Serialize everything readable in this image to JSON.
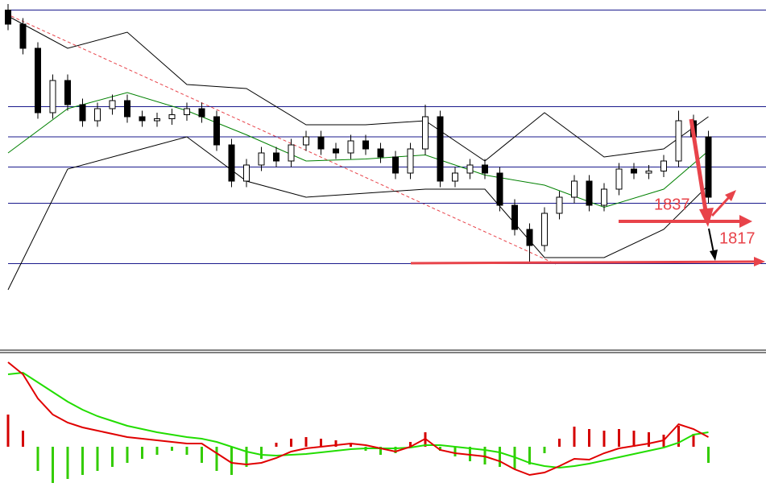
{
  "chart_data": [
    {
      "type": "candlestick",
      "annotations": [
        "1837",
        "1817"
      ],
      "ylim": [
        1690,
        2040
      ],
      "levels": [
        2030,
        1934,
        1904,
        1874,
        1838,
        1778
      ],
      "level_color": "#1a1a8c",
      "open": [
        2030,
        2016,
        1992,
        1928,
        1960,
        1936,
        1920,
        1932,
        1940,
        1924,
        1920,
        1922,
        1926,
        1932,
        1924,
        1896,
        1860,
        1876,
        1888,
        1880,
        1896,
        1904,
        1892,
        1888,
        1900,
        1892,
        1884,
        1868,
        1892,
        1924,
        1860,
        1868,
        1876,
        1868,
        1836,
        1812,
        1796,
        1828,
        1844,
        1860,
        1836,
        1852,
        1872,
        1868,
        1870,
        1880,
        1920,
        1904
      ],
      "high": [
        2036,
        2022,
        1998,
        1966,
        1966,
        1942,
        1938,
        1946,
        1946,
        1930,
        1928,
        1932,
        1938,
        1938,
        1930,
        1902,
        1882,
        1894,
        1894,
        1902,
        1910,
        1910,
        1898,
        1906,
        1906,
        1898,
        1890,
        1898,
        1936,
        1930,
        1874,
        1882,
        1882,
        1874,
        1842,
        1818,
        1834,
        1850,
        1866,
        1866,
        1858,
        1878,
        1878,
        1876,
        1886,
        1930,
        1926,
        1910
      ],
      "low": [
        2010,
        1986,
        1922,
        1922,
        1930,
        1914,
        1914,
        1926,
        1918,
        1914,
        1914,
        1916,
        1920,
        1918,
        1890,
        1854,
        1854,
        1870,
        1874,
        1874,
        1890,
        1886,
        1882,
        1882,
        1886,
        1878,
        1862,
        1862,
        1886,
        1854,
        1854,
        1862,
        1862,
        1830,
        1806,
        1780,
        1790,
        1822,
        1838,
        1830,
        1830,
        1846,
        1862,
        1862,
        1864,
        1874,
        1898,
        1838
      ],
      "close": [
        2016,
        1992,
        1928,
        1960,
        1936,
        1920,
        1932,
        1940,
        1924,
        1920,
        1922,
        1926,
        1932,
        1924,
        1896,
        1860,
        1876,
        1888,
        1880,
        1896,
        1904,
        1892,
        1888,
        1900,
        1892,
        1884,
        1868,
        1892,
        1924,
        1860,
        1868,
        1876,
        1868,
        1836,
        1812,
        1796,
        1828,
        1844,
        1860,
        1836,
        1852,
        1872,
        1868,
        1870,
        1880,
        1920,
        1904,
        1844
      ],
      "bands": {
        "x": [
          0,
          4,
          8,
          12,
          16,
          20,
          24,
          28,
          32,
          36,
          40,
          44,
          47
        ],
        "upper": [
          2024,
          1992,
          2008,
          1956,
          1952,
          1916,
          1916,
          1920,
          1880,
          1928,
          1884,
          1892,
          1924
        ],
        "middle": [
          1888,
          1932,
          1948,
          1930,
          1906,
          1880,
          1882,
          1886,
          1866,
          1856,
          1834,
          1852,
          1890
        ],
        "lower": [
          1752,
          1872,
          1888,
          1904,
          1860,
          1844,
          1848,
          1852,
          1852,
          1784,
          1784,
          1812,
          1856
        ],
        "colors": [
          "#000000",
          "#008000",
          "#000000"
        ]
      }
    },
    {
      "type": "macd",
      "ylim": [
        -5,
        11.5
      ],
      "histogram": [
        4,
        2,
        -3,
        -4.5,
        -4,
        -3.5,
        -3,
        -2.5,
        -2,
        -1.5,
        -1,
        -0.5,
        -1,
        -2,
        -3,
        -3.5,
        -2.5,
        -1.5,
        0.5,
        1,
        1.2,
        1,
        0.8,
        0.5,
        -0.5,
        -1,
        -0.8,
        0.6,
        1.8,
        -0.5,
        -1.2,
        -1.8,
        -2.2,
        -2.5,
        -2.8,
        -2.2,
        -0.8,
        1,
        2.5,
        2.2,
        2,
        2.2,
        2,
        1.8,
        1.5,
        2.6,
        1.6,
        -2
      ],
      "dif": [
        10.5,
        9,
        6,
        4,
        3,
        2.4,
        2,
        1.6,
        1.2,
        1,
        0.8,
        0.6,
        0.4,
        0.4,
        -0.8,
        -2,
        -2.2,
        -2,
        -1.4,
        -0.6,
        -0.2,
        0,
        0.2,
        0.4,
        0.2,
        -0.2,
        -0.6,
        0,
        1,
        -0.4,
        -0.8,
        -1,
        -1.2,
        -1.8,
        -2.8,
        -3.5,
        -3.2,
        -2.4,
        -1.5,
        -1.6,
        -0.8,
        -0.2,
        0.1,
        0.4,
        0.8,
        2.8,
        2.2,
        1.2
      ],
      "dea": [
        9,
        9.2,
        8,
        6.8,
        5.6,
        4.6,
        3.8,
        3.2,
        2.6,
        2.2,
        1.8,
        1.5,
        1.2,
        1,
        0.6,
        0,
        -0.6,
        -1,
        -1.1,
        -1,
        -0.9,
        -0.7,
        -0.5,
        -0.3,
        -0.2,
        -0.2,
        -0.2,
        -0.1,
        0.2,
        0.2,
        0,
        -0.2,
        -0.4,
        -0.7,
        -1.3,
        -2,
        -2.4,
        -2.6,
        -2.4,
        -2.1,
        -1.7,
        -1.3,
        -0.9,
        -0.5,
        -0.1,
        0.5,
        1.5,
        1.8
      ],
      "colors": {
        "up": "#d40000",
        "down": "#33cc00",
        "dif": "#e00000",
        "dea": "#22dd00"
      }
    }
  ]
}
